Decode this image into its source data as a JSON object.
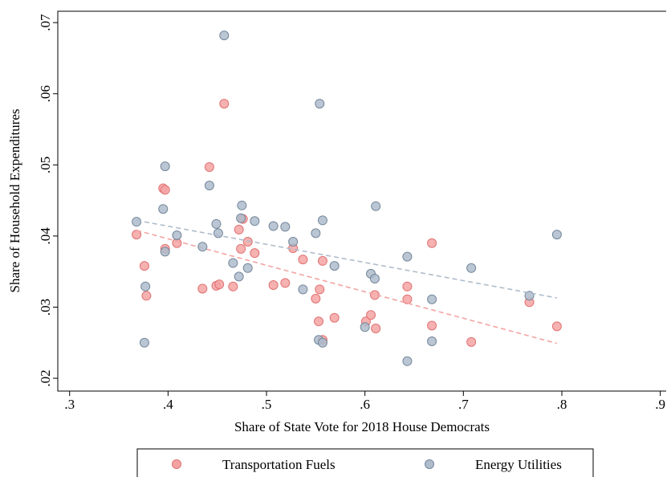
{
  "chart_data": {
    "type": "scatter",
    "x_label": "Share of State Vote for 2018 House Democrats",
    "y_label": "Share of Household Expenditures",
    "xlim": [
      0.288,
      0.906
    ],
    "ylim": [
      0.0182,
      0.0716
    ],
    "xticks": [
      {
        "value": 0.3,
        "label": ".3"
      },
      {
        "value": 0.4,
        "label": ".4"
      },
      {
        "value": 0.5,
        "label": ".5"
      },
      {
        "value": 0.6,
        "label": ".6"
      },
      {
        "value": 0.7,
        "label": ".7"
      },
      {
        "value": 0.8,
        "label": ".8"
      },
      {
        "value": 0.9,
        "label": ".9"
      }
    ],
    "yticks": [
      {
        "value": 0.02,
        "label": ".02"
      },
      {
        "value": 0.03,
        "label": ".03"
      },
      {
        "value": 0.04,
        "label": ".04"
      },
      {
        "value": 0.05,
        "label": ".05"
      },
      {
        "value": 0.06,
        "label": ".06"
      },
      {
        "value": 0.07,
        "label": ".07"
      }
    ],
    "grid": false,
    "legend": "bottom",
    "series": [
      {
        "name": "Transportation Fuels",
        "color": "#f4a3a3",
        "edge": "#e07272",
        "x": [
          0.368,
          0.376,
          0.378,
          0.395,
          0.397,
          0.397,
          0.409,
          0.435,
          0.442,
          0.449,
          0.452,
          0.457,
          0.466,
          0.472,
          0.474,
          0.476,
          0.481,
          0.488,
          0.507,
          0.519,
          0.527,
          0.537,
          0.55,
          0.553,
          0.554,
          0.557,
          0.557,
          0.569,
          0.601,
          0.606,
          0.61,
          0.611,
          0.643,
          0.643,
          0.668,
          0.668,
          0.708,
          0.767,
          0.795
        ],
        "values": [
          0.0402,
          0.0358,
          0.0316,
          0.0467,
          0.0465,
          0.0382,
          0.039,
          0.0326,
          0.0497,
          0.033,
          0.0332,
          0.0586,
          0.0329,
          0.0409,
          0.0382,
          0.0424,
          0.0392,
          0.0376,
          0.0331,
          0.0334,
          0.0383,
          0.0367,
          0.0312,
          0.028,
          0.0325,
          0.0365,
          0.0254,
          0.0285,
          0.028,
          0.0289,
          0.0317,
          0.027,
          0.0311,
          0.0329,
          0.039,
          0.0274,
          0.0251,
          0.0307,
          0.0273
        ],
        "fit_x": [
          0.368,
          0.795
        ],
        "fit_values": [
          0.0408,
          0.0249
        ]
      },
      {
        "name": "Energy Utilities",
        "color": "#aebccb",
        "edge": "#75879b",
        "x": [
          0.368,
          0.377,
          0.376,
          0.395,
          0.397,
          0.397,
          0.409,
          0.435,
          0.442,
          0.449,
          0.451,
          0.457,
          0.466,
          0.472,
          0.475,
          0.474,
          0.481,
          0.488,
          0.507,
          0.519,
          0.527,
          0.537,
          0.55,
          0.554,
          0.553,
          0.557,
          0.557,
          0.569,
          0.6,
          0.606,
          0.61,
          0.611,
          0.643,
          0.643,
          0.668,
          0.668,
          0.708,
          0.767,
          0.795
        ],
        "values": [
          0.042,
          0.0329,
          0.025,
          0.0438,
          0.0498,
          0.0378,
          0.0401,
          0.0385,
          0.0471,
          0.0417,
          0.0404,
          0.0682,
          0.0362,
          0.0343,
          0.0443,
          0.0425,
          0.0355,
          0.0421,
          0.0414,
          0.0413,
          0.0392,
          0.0325,
          0.0404,
          0.0586,
          0.0254,
          0.025,
          0.0422,
          0.0358,
          0.0272,
          0.0347,
          0.034,
          0.0442,
          0.0371,
          0.0224,
          0.0311,
          0.0252,
          0.0355,
          0.0316,
          0.0402
        ],
        "fit_x": [
          0.368,
          0.795
        ],
        "fit_values": [
          0.0422,
          0.0313
        ]
      }
    ]
  }
}
